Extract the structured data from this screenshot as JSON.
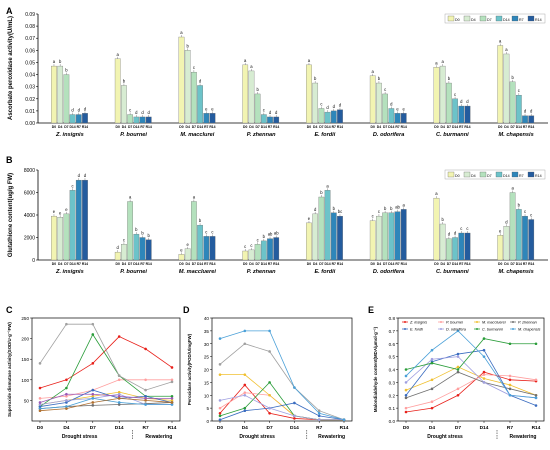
{
  "chart_data": [
    {
      "panel": "A",
      "type": "bar",
      "ylabel": "Ascorbate peroxidase activity(U/mL)",
      "ylim": [
        0,
        0.09
      ],
      "yticks": [
        "0.00",
        "0.01",
        "0.02",
        "0.03",
        "0.04",
        "0.05",
        "0.06",
        "0.07",
        "0.08",
        "0.09"
      ],
      "groups": [
        "Z. insignis",
        "P. bournei",
        "M. macclurei",
        "P. zhennan",
        "E. fordii",
        "D. odorifera",
        "C. burmanni",
        "M. chapensis"
      ],
      "series": [
        {
          "name": "D0",
          "color": "#f2f4b2"
        },
        {
          "name": "D4",
          "color": "#d7ecd2"
        },
        {
          "name": "D7",
          "color": "#b4e1bd"
        },
        {
          "name": "D14",
          "color": "#6cc3c9"
        },
        {
          "name": "R7",
          "color": "#2e86ba"
        },
        {
          "name": "R14",
          "color": "#245c9e"
        }
      ],
      "ticks": [
        "D0",
        "D4",
        "D7",
        "D14",
        "R7",
        "R14"
      ],
      "values": [
        [
          0.047,
          0.047,
          0.04,
          0.007,
          0.007,
          0.008
        ],
        [
          0.053,
          0.031,
          0.007,
          0.005,
          0.005,
          0.005
        ],
        [
          0.071,
          0.06,
          0.042,
          0.031,
          0.008,
          0.008
        ],
        [
          0.048,
          0.043,
          0.024,
          0.007,
          0.005,
          0.005
        ],
        [
          0.048,
          0.033,
          0.012,
          0.009,
          0.01,
          0.011
        ],
        [
          0.039,
          0.033,
          0.024,
          0.012,
          0.008,
          0.008
        ],
        [
          0.046,
          0.047,
          0.033,
          0.02,
          0.014,
          0.014
        ],
        [
          0.064,
          0.057,
          0.034,
          0.023,
          0.006,
          0.006
        ]
      ],
      "letters": [
        [
          "a",
          "b",
          "b",
          "d",
          "d",
          "d"
        ],
        [
          "a",
          "b",
          "c",
          "d",
          "d",
          "d"
        ],
        [
          "a",
          "b",
          "c",
          "d",
          "e",
          "e"
        ],
        [
          "a",
          "a",
          "b",
          "c",
          "d",
          "d"
        ],
        [
          "a",
          "b",
          "c",
          "d",
          "d",
          "d"
        ],
        [
          "a",
          "b",
          "c",
          "d",
          "e",
          "e"
        ],
        [
          "a",
          "a",
          "b",
          "c",
          "d",
          "d"
        ],
        [
          "a",
          "a",
          "b",
          "c",
          "d",
          "d"
        ]
      ]
    },
    {
      "panel": "B",
      "type": "bar",
      "ylabel": "Glutathione content(ug/g FW)",
      "ylim": [
        0,
        8000
      ],
      "yticks": [
        "0",
        "2000",
        "4000",
        "6000",
        "8000"
      ],
      "groups": [
        "Z. insignis",
        "P. bournei",
        "M. maccluerei",
        "P. zhennan",
        "E. fordii",
        "D. odorifera",
        "C. burmanni",
        "M. chapensis"
      ],
      "series": [
        {
          "name": "D0",
          "color": "#f2f4b2"
        },
        {
          "name": "D4",
          "color": "#d7ecd2"
        },
        {
          "name": "D7",
          "color": "#b4e1bd"
        },
        {
          "name": "D14",
          "color": "#6cc3c9"
        },
        {
          "name": "R7",
          "color": "#2e86ba"
        },
        {
          "name": "R14",
          "color": "#245c9e"
        }
      ],
      "ticks": [
        "D0",
        "D4",
        "D7",
        "D14",
        "R7",
        "R14"
      ],
      "values": [
        [
          3900,
          3800,
          4100,
          6200,
          7100,
          7100
        ],
        [
          700,
          1400,
          5200,
          2300,
          2000,
          1800
        ],
        [
          500,
          1000,
          5200,
          3100,
          2100,
          2100
        ],
        [
          800,
          900,
          1400,
          1700,
          1900,
          2000
        ],
        [
          3300,
          4100,
          5600,
          6200,
          4200,
          3900
        ],
        [
          3500,
          3900,
          4200,
          4200,
          4300,
          4500
        ],
        [
          5500,
          3200,
          1900,
          2000,
          2400,
          2400
        ],
        [
          2200,
          3000,
          6000,
          4500,
          3900,
          3600
        ]
      ],
      "letters": [
        [
          "e",
          "e",
          "e",
          "c",
          "d",
          "d"
        ],
        [
          "d",
          "c",
          "a",
          "b",
          "b",
          "b"
        ],
        [
          "e",
          "e",
          "a",
          "b",
          "c",
          "c"
        ],
        [
          "c",
          "c",
          "c",
          "b",
          "ab",
          "ab"
        ],
        [
          "e",
          "d",
          "b",
          "a",
          "b",
          "bc"
        ],
        [
          "c",
          "c",
          "b",
          "b",
          "ab",
          "a"
        ],
        [
          "a",
          "b",
          "d",
          "d",
          "c",
          "c"
        ],
        [
          "e",
          "d",
          "a",
          "b",
          "c",
          "c"
        ]
      ]
    },
    {
      "panel": "C",
      "type": "line",
      "ylabel": "Superoxide dismutase activity(SOD/U·g⁻¹FW)",
      "ylim": [
        0,
        250
      ],
      "yticks": [
        "50",
        "100",
        "150",
        "200",
        "250"
      ],
      "x": [
        "D0",
        "D4",
        "D7",
        "D14",
        "R7",
        "R14"
      ],
      "groups": [
        "Drought stress",
        "Rewatering"
      ],
      "series": [
        {
          "color": "#e8201a",
          "values": [
            80,
            100,
            140,
            205,
            175,
            130
          ]
        },
        {
          "color": "#ff9f9f",
          "values": [
            55,
            60,
            75,
            100,
            100,
            100
          ]
        },
        {
          "color": "#6f6f6f",
          "values": [
            30,
            35,
            38,
            40,
            42,
            45
          ]
        },
        {
          "color": "#f0c030",
          "values": [
            40,
            50,
            60,
            70,
            55,
            50
          ]
        },
        {
          "color": "#2a9d3a",
          "values": [
            35,
            80,
            210,
            110,
            60,
            60
          ]
        },
        {
          "color": "#3a6cc0",
          "values": [
            35,
            45,
            75,
            55,
            60,
            45
          ]
        },
        {
          "color": "#9f9fe0",
          "values": [
            40,
            50,
            55,
            65,
            40,
            40
          ]
        },
        {
          "color": "#a0a0a0",
          "values": [
            140,
            235,
            235,
            110,
            75,
            95
          ]
        },
        {
          "color": "#9b59b6",
          "values": [
            45,
            65,
            65,
            60,
            55,
            55
          ]
        },
        {
          "color": "#4aa0d8",
          "values": [
            30,
            35,
            55,
            45,
            40,
            40
          ]
        },
        {
          "color": "#b07030",
          "values": [
            25,
            30,
            45,
            55,
            50,
            45
          ]
        }
      ]
    },
    {
      "panel": "D",
      "type": "line",
      "ylabel": "Peroxidase activity(POD/U/mgFW)",
      "ylim": [
        0,
        40
      ],
      "yticks": [
        "0",
        "5",
        "10",
        "15",
        "20",
        "25",
        "30",
        "35",
        "40"
      ],
      "x": [
        "D0",
        "D4",
        "D7",
        "D14",
        "R7",
        "R14"
      ],
      "groups": [
        "Drought stress",
        "Rewatering"
      ],
      "series": [
        {
          "color": "#e8201a",
          "values": [
            3,
            14,
            3,
            1,
            0.5,
            0.5
          ]
        },
        {
          "color": "#ff9f9f",
          "values": [
            5,
            11,
            10,
            2,
            0.5,
            0.5
          ]
        },
        {
          "color": "#f0c030",
          "values": [
            18,
            18,
            10,
            2,
            0.5,
            0.5
          ]
        },
        {
          "color": "#2a9d3a",
          "values": [
            2,
            5,
            15,
            2,
            0.5,
            0.5
          ]
        },
        {
          "color": "#3a6cc0",
          "values": [
            0.5,
            4,
            5,
            7,
            2,
            0.5
          ]
        },
        {
          "color": "#9f9fe0",
          "values": [
            8,
            10,
            5,
            2,
            0.5,
            0.5
          ]
        },
        {
          "color": "#a0a0a0",
          "values": [
            22,
            30,
            27,
            13,
            4,
            0.5
          ]
        },
        {
          "color": "#4aa0d8",
          "values": [
            32,
            35,
            35,
            13,
            3,
            0.5
          ]
        }
      ]
    },
    {
      "panel": "E",
      "type": "line",
      "ylabel": "Malondialdehyde content(MDA/μmol·g⁻¹)",
      "ylim": [
        0,
        0.8
      ],
      "yticks": [
        "0.0",
        "0.1",
        "0.2",
        "0.3",
        "0.4",
        "0.5",
        "0.6",
        "0.7",
        "0.8"
      ],
      "x": [
        "D0",
        "D4",
        "D7",
        "D14",
        "R7",
        "R14"
      ],
      "groups": [
        "Drought stress",
        "Rewatering"
      ],
      "series": [
        {
          "name": "Z. insignis",
          "color": "#e8201a",
          "values": [
            0.07,
            0.1,
            0.2,
            0.38,
            0.32,
            0.31
          ]
        },
        {
          "name": "P. bournei",
          "color": "#ff9f9f",
          "values": [
            0.1,
            0.15,
            0.25,
            0.36,
            0.35,
            0.32
          ]
        },
        {
          "name": "M. maccluerei",
          "color": "#f0c030",
          "values": [
            0.24,
            0.32,
            0.42,
            0.33,
            0.28,
            0.2
          ]
        },
        {
          "name": "P. zhennan",
          "color": "#6f6f6f",
          "values": [
            0.18,
            0.25,
            0.38,
            0.3,
            0.25,
            0.2
          ]
        },
        {
          "name": "E. fordii",
          "color": "#3a6cc0",
          "values": [
            0.2,
            0.46,
            0.52,
            0.55,
            0.2,
            0.12
          ]
        },
        {
          "name": "D. odorifera",
          "color": "#9f9fe0",
          "values": [
            0.3,
            0.48,
            0.5,
            0.3,
            0.2,
            0.18
          ]
        },
        {
          "name": "C. burmanni",
          "color": "#2a9d3a",
          "values": [
            0.4,
            0.45,
            0.4,
            0.64,
            0.6,
            0.6
          ]
        },
        {
          "name": "M. chapensis",
          "color": "#4aa0d8",
          "values": [
            0.35,
            0.55,
            0.7,
            0.5,
            0.2,
            0.18
          ]
        }
      ]
    }
  ]
}
